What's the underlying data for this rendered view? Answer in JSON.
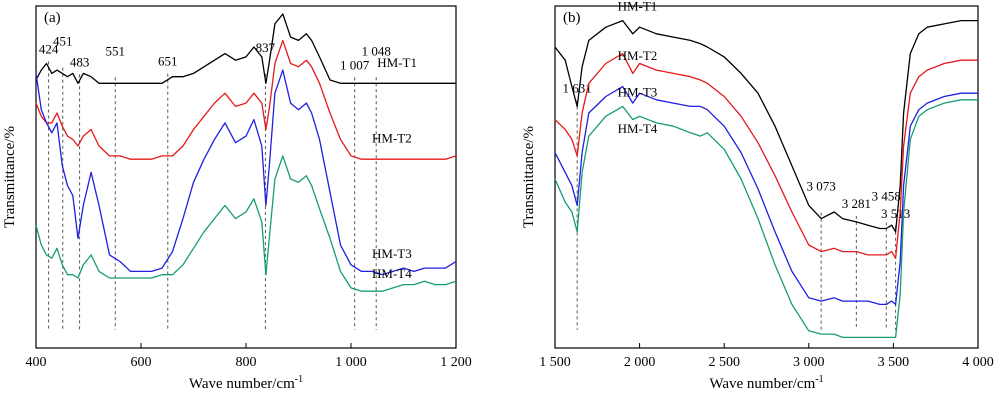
{
  "chart_data": [
    {
      "type": "line",
      "panel_label": "(a)",
      "xlabel": "Wave number/cm",
      "xlabel_sup": "-1",
      "ylabel": "Transmittance/%",
      "xlim": [
        400,
        1200
      ],
      "xticks": [
        400,
        600,
        800,
        1000,
        1200
      ],
      "xtick_labels": [
        "400",
        "600",
        "800",
        "1 000",
        "1 200"
      ],
      "annotations": [
        {
          "x": 424,
          "label": "424"
        },
        {
          "x": 451,
          "label": "451"
        },
        {
          "x": 483,
          "label": "483"
        },
        {
          "x": 551,
          "label": "551"
        },
        {
          "x": 651,
          "label": "651"
        },
        {
          "x": 837,
          "label": "837"
        },
        {
          "x": 1007,
          "label": "1 007"
        },
        {
          "x": 1048,
          "label": "1 048"
        }
      ],
      "series": [
        {
          "name": "HM-T1",
          "color": "#000000",
          "x": [
            400,
            410,
            420,
            430,
            440,
            450,
            460,
            470,
            480,
            490,
            505,
            520,
            540,
            560,
            580,
            600,
            620,
            640,
            660,
            680,
            700,
            720,
            740,
            760,
            780,
            800,
            815,
            830,
            838,
            845,
            855,
            870,
            885,
            900,
            915,
            925,
            940,
            960,
            980,
            1000,
            1020,
            1040,
            1060,
            1080,
            1100,
            1120,
            1140,
            1160,
            1180,
            1200
          ],
          "y": [
            0.8,
            0.83,
            0.85,
            0.82,
            0.83,
            0.82,
            0.81,
            0.82,
            0.79,
            0.82,
            0.81,
            0.79,
            0.79,
            0.79,
            0.79,
            0.79,
            0.79,
            0.79,
            0.81,
            0.81,
            0.82,
            0.84,
            0.86,
            0.88,
            0.86,
            0.87,
            0.9,
            0.87,
            0.79,
            0.86,
            0.97,
            1.0,
            0.93,
            0.92,
            0.94,
            0.92,
            0.87,
            0.8,
            0.79,
            0.79,
            0.79,
            0.79,
            0.79,
            0.79,
            0.79,
            0.79,
            0.79,
            0.79,
            0.79,
            0.79
          ]
        },
        {
          "name": "HM-T2",
          "color": "#e41a1c",
          "x": [
            400,
            410,
            420,
            430,
            440,
            450,
            460,
            470,
            480,
            490,
            505,
            520,
            540,
            560,
            580,
            600,
            620,
            640,
            660,
            680,
            700,
            720,
            740,
            760,
            780,
            800,
            815,
            830,
            838,
            845,
            855,
            870,
            885,
            900,
            915,
            925,
            940,
            960,
            980,
            1000,
            1020,
            1040,
            1060,
            1080,
            1100,
            1120,
            1140,
            1160,
            1180,
            1200
          ],
          "y": [
            0.73,
            0.69,
            0.67,
            0.67,
            0.7,
            0.66,
            0.63,
            0.62,
            0.6,
            0.63,
            0.65,
            0.6,
            0.57,
            0.57,
            0.56,
            0.56,
            0.56,
            0.57,
            0.57,
            0.6,
            0.65,
            0.69,
            0.73,
            0.76,
            0.72,
            0.73,
            0.76,
            0.73,
            0.65,
            0.72,
            0.85,
            0.92,
            0.85,
            0.84,
            0.86,
            0.84,
            0.79,
            0.7,
            0.62,
            0.57,
            0.56,
            0.56,
            0.56,
            0.56,
            0.56,
            0.56,
            0.56,
            0.56,
            0.56,
            0.57
          ]
        },
        {
          "name": "HM-T3",
          "color": "#1f1fe0",
          "x": [
            400,
            410,
            420,
            430,
            440,
            450,
            460,
            470,
            480,
            490,
            505,
            520,
            540,
            560,
            580,
            600,
            620,
            640,
            660,
            680,
            700,
            720,
            740,
            760,
            780,
            800,
            815,
            830,
            838,
            845,
            855,
            870,
            885,
            900,
            915,
            925,
            940,
            960,
            980,
            1000,
            1020,
            1040,
            1060,
            1080,
            1100,
            1120,
            1140,
            1160,
            1180,
            1200
          ],
          "y": [
            0.82,
            0.71,
            0.67,
            0.64,
            0.67,
            0.54,
            0.48,
            0.45,
            0.32,
            0.42,
            0.52,
            0.42,
            0.27,
            0.25,
            0.22,
            0.22,
            0.22,
            0.23,
            0.28,
            0.38,
            0.49,
            0.56,
            0.62,
            0.67,
            0.61,
            0.63,
            0.68,
            0.6,
            0.42,
            0.55,
            0.76,
            0.83,
            0.73,
            0.71,
            0.73,
            0.7,
            0.62,
            0.46,
            0.3,
            0.24,
            0.22,
            0.22,
            0.21,
            0.22,
            0.23,
            0.22,
            0.23,
            0.23,
            0.23,
            0.25
          ]
        },
        {
          "name": "HM-T4",
          "color": "#179c74",
          "x": [
            400,
            410,
            420,
            430,
            440,
            450,
            460,
            470,
            480,
            490,
            505,
            520,
            540,
            560,
            580,
            600,
            620,
            640,
            660,
            680,
            700,
            720,
            740,
            760,
            780,
            800,
            815,
            830,
            838,
            845,
            855,
            870,
            885,
            900,
            915,
            925,
            940,
            960,
            980,
            1000,
            1020,
            1040,
            1060,
            1080,
            1100,
            1120,
            1140,
            1160,
            1180,
            1200
          ],
          "y": [
            0.36,
            0.3,
            0.27,
            0.26,
            0.29,
            0.24,
            0.21,
            0.21,
            0.2,
            0.24,
            0.27,
            0.22,
            0.2,
            0.2,
            0.2,
            0.2,
            0.2,
            0.21,
            0.21,
            0.24,
            0.29,
            0.34,
            0.38,
            0.42,
            0.38,
            0.4,
            0.44,
            0.37,
            0.21,
            0.33,
            0.5,
            0.57,
            0.5,
            0.49,
            0.51,
            0.48,
            0.41,
            0.32,
            0.22,
            0.17,
            0.16,
            0.16,
            0.16,
            0.17,
            0.18,
            0.18,
            0.19,
            0.18,
            0.18,
            0.19
          ]
        }
      ],
      "series_label_pos": [
        [
          1050,
          0.84
        ],
        [
          1040,
          0.61
        ],
        [
          1040,
          0.26
        ],
        [
          1040,
          0.2
        ]
      ]
    },
    {
      "type": "line",
      "panel_label": "(b)",
      "xlabel": "Wave number/cm",
      "xlabel_sup": "-1",
      "ylabel": "Transmittance/%",
      "xlim": [
        1500,
        4000
      ],
      "xticks": [
        1500,
        2000,
        2500,
        3000,
        3500,
        4000
      ],
      "xtick_labels": [
        "1 500",
        "2 000",
        "2 500",
        "3 000",
        "3 500",
        "4 000"
      ],
      "annotations": [
        {
          "x": 1631,
          "label": "1 631"
        },
        {
          "x": 3073,
          "label": "3 073"
        },
        {
          "x": 3281,
          "label": "3 281"
        },
        {
          "x": 3458,
          "label": "3 458"
        },
        {
          "x": 3513,
          "label": "3 513"
        }
      ],
      "series": [
        {
          "name": "HM-T1",
          "color": "#000000",
          "x": [
            1500,
            1560,
            1600,
            1631,
            1660,
            1700,
            1800,
            1900,
            1960,
            2000,
            2100,
            2200,
            2300,
            2360,
            2400,
            2500,
            2600,
            2700,
            2800,
            2900,
            3000,
            3073,
            3150,
            3200,
            3281,
            3350,
            3420,
            3458,
            3490,
            3513,
            3540,
            3560,
            3600,
            3650,
            3700,
            3800,
            3900,
            4000
          ],
          "y": [
            0.9,
            0.86,
            0.78,
            0.72,
            0.84,
            0.92,
            0.96,
            0.98,
            0.94,
            0.96,
            0.94,
            0.93,
            0.92,
            0.91,
            0.9,
            0.87,
            0.82,
            0.76,
            0.66,
            0.54,
            0.42,
            0.38,
            0.4,
            0.38,
            0.37,
            0.36,
            0.35,
            0.35,
            0.36,
            0.34,
            0.48,
            0.7,
            0.88,
            0.94,
            0.96,
            0.97,
            0.98,
            0.98
          ]
        },
        {
          "name": "HM-T2",
          "color": "#e41a1c",
          "x": [
            1500,
            1560,
            1600,
            1631,
            1660,
            1700,
            1800,
            1900,
            1960,
            2000,
            2100,
            2200,
            2300,
            2360,
            2400,
            2500,
            2600,
            2700,
            2800,
            2900,
            3000,
            3073,
            3150,
            3200,
            3281,
            3350,
            3420,
            3458,
            3490,
            3513,
            3540,
            3560,
            3600,
            3650,
            3700,
            3800,
            3900,
            4000
          ],
          "y": [
            0.68,
            0.65,
            0.62,
            0.57,
            0.7,
            0.79,
            0.85,
            0.88,
            0.82,
            0.85,
            0.83,
            0.82,
            0.81,
            0.8,
            0.79,
            0.75,
            0.69,
            0.61,
            0.51,
            0.4,
            0.3,
            0.28,
            0.29,
            0.28,
            0.28,
            0.27,
            0.27,
            0.27,
            0.28,
            0.26,
            0.4,
            0.6,
            0.76,
            0.81,
            0.83,
            0.85,
            0.86,
            0.86
          ]
        },
        {
          "name": "HM-T3",
          "color": "#1f1fe0",
          "x": [
            1500,
            1560,
            1600,
            1631,
            1660,
            1700,
            1800,
            1900,
            1960,
            2000,
            2100,
            2200,
            2300,
            2360,
            2400,
            2500,
            2600,
            2700,
            2800,
            2900,
            3000,
            3073,
            3150,
            3200,
            3281,
            3350,
            3420,
            3458,
            3490,
            3513,
            3540,
            3560,
            3600,
            3650,
            3700,
            3800,
            3900,
            4000
          ],
          "y": [
            0.58,
            0.52,
            0.48,
            0.42,
            0.58,
            0.7,
            0.75,
            0.78,
            0.73,
            0.76,
            0.74,
            0.73,
            0.72,
            0.72,
            0.71,
            0.66,
            0.58,
            0.47,
            0.34,
            0.22,
            0.14,
            0.13,
            0.14,
            0.13,
            0.13,
            0.13,
            0.12,
            0.12,
            0.13,
            0.12,
            0.25,
            0.48,
            0.66,
            0.71,
            0.73,
            0.75,
            0.76,
            0.76
          ]
        },
        {
          "name": "HM-T4",
          "color": "#179c74",
          "x": [
            1500,
            1560,
            1600,
            1631,
            1660,
            1700,
            1800,
            1900,
            1960,
            2000,
            2100,
            2200,
            2300,
            2360,
            2400,
            2500,
            2600,
            2700,
            2800,
            2900,
            3000,
            3073,
            3150,
            3200,
            3281,
            3350,
            3420,
            3458,
            3490,
            3513,
            3540,
            3560,
            3600,
            3650,
            3700,
            3800,
            3900,
            4000
          ],
          "y": [
            0.5,
            0.43,
            0.4,
            0.34,
            0.52,
            0.63,
            0.69,
            0.72,
            0.68,
            0.69,
            0.67,
            0.66,
            0.64,
            0.63,
            0.64,
            0.59,
            0.5,
            0.38,
            0.24,
            0.12,
            0.04,
            0.03,
            0.03,
            0.02,
            0.02,
            0.02,
            0.02,
            0.02,
            0.02,
            0.02,
            0.15,
            0.4,
            0.62,
            0.69,
            0.71,
            0.73,
            0.74,
            0.74
          ]
        }
      ],
      "series_label_pos": [
        [
          1870,
          1.01
        ],
        [
          1870,
          0.86
        ],
        [
          1870,
          0.75
        ],
        [
          1870,
          0.64
        ]
      ]
    }
  ]
}
